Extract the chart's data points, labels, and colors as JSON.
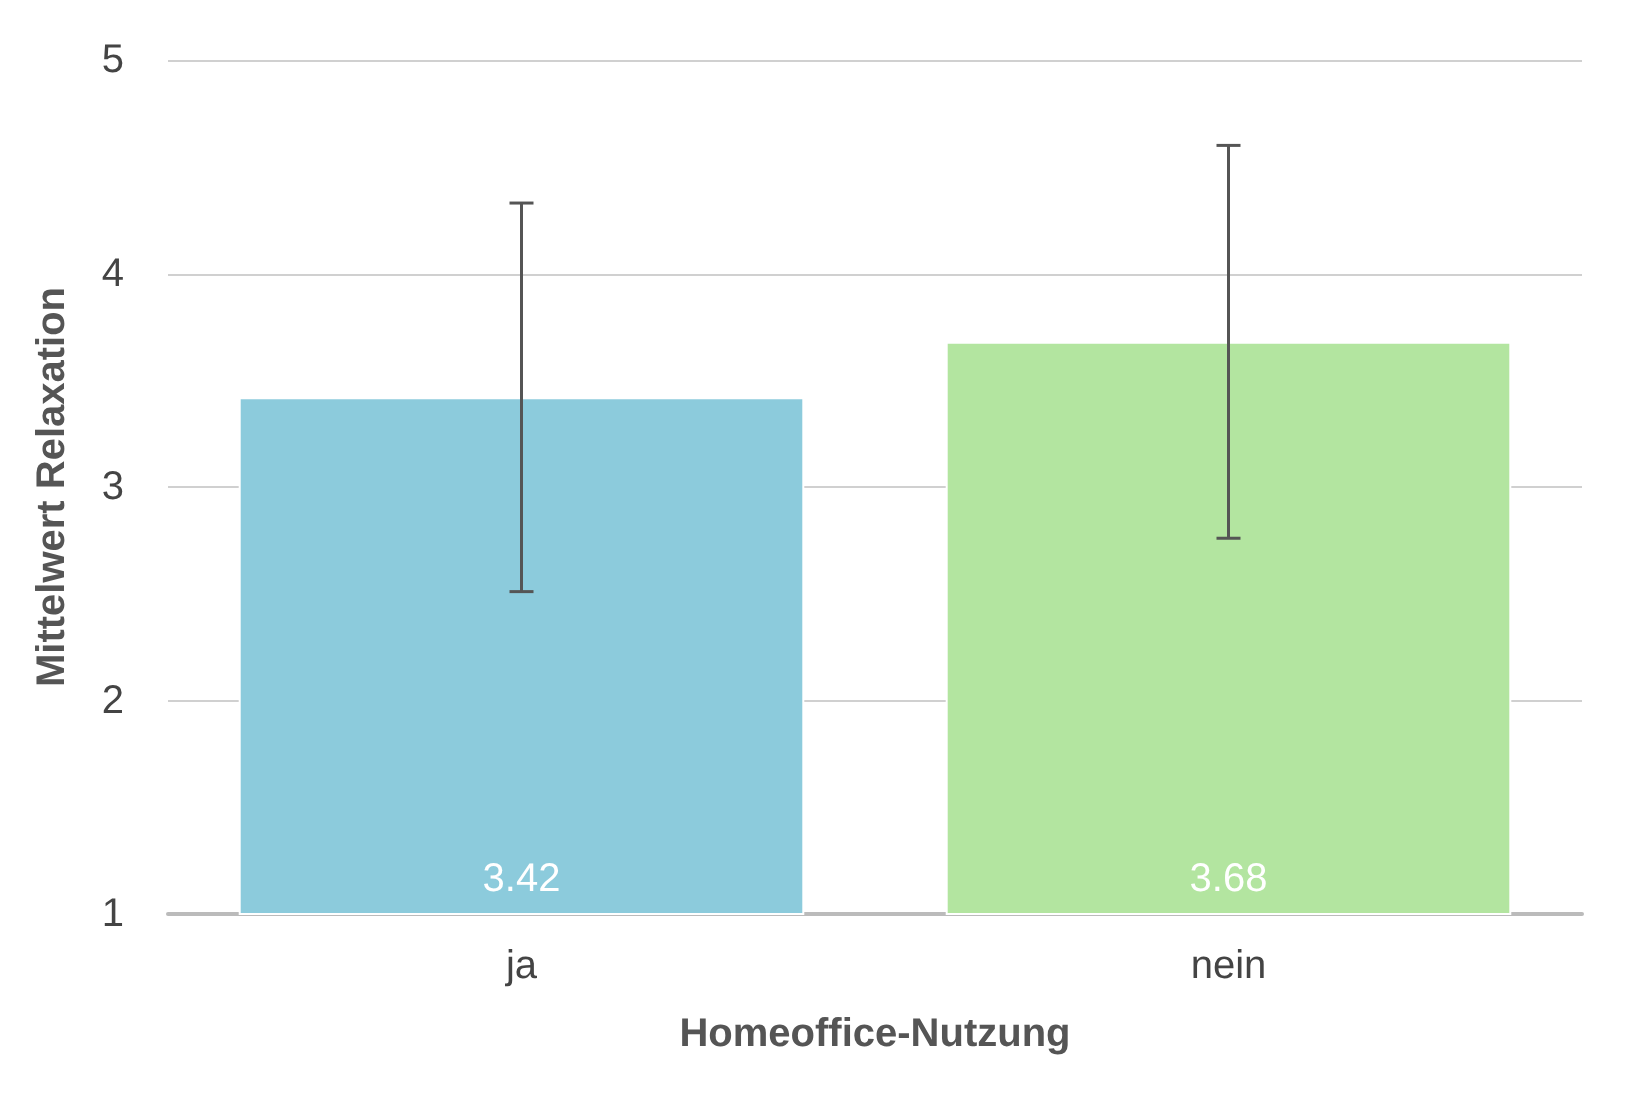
{
  "chart_data": {
    "type": "bar",
    "xlabel": "Homeoffice-Nutzung",
    "ylabel": "Mittelwert Relaxation",
    "categories": [
      "ja",
      "nein"
    ],
    "values": [
      3.42,
      3.68
    ],
    "colors": [
      "#8ccbdc",
      "#b3e5a0"
    ],
    "errors": [
      0.91,
      0.92
    ],
    "ylim": [
      1,
      5
    ],
    "yticks": [
      1,
      2,
      3,
      4,
      5
    ],
    "grid": "y",
    "data_labels": true
  }
}
